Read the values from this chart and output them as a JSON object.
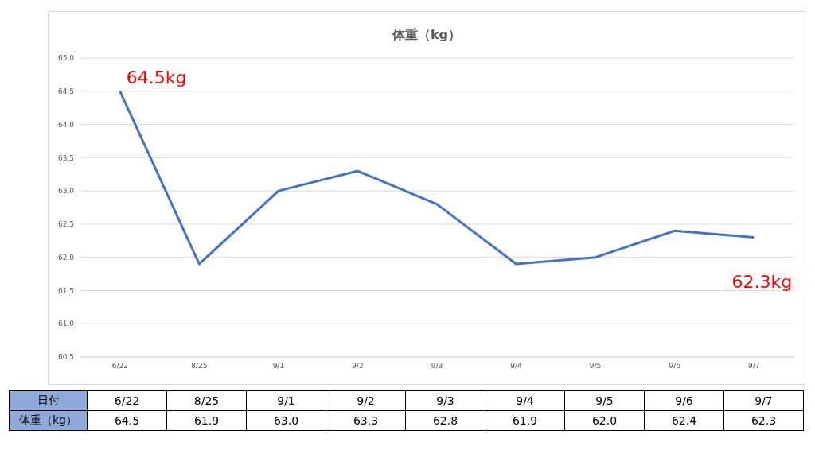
{
  "chart_data": {
    "type": "line",
    "title": "体重（kg）",
    "xlabel": "日付",
    "ylabel": "体重（kg）",
    "categories": [
      "6/22",
      "8/25",
      "9/1",
      "9/2",
      "9/3",
      "9/4",
      "9/5",
      "9/6",
      "9/7"
    ],
    "series": [
      {
        "color": "#4472c4",
        "values": [
          64.5,
          61.9,
          63.0,
          63.3,
          62.8,
          61.9,
          62.0,
          62.4,
          62.3
        ],
        "value_labels": [
          "64.5",
          "61.9",
          "63.0",
          "63.3",
          "62.8",
          "61.9",
          "62.0",
          "62.4",
          "62.3"
        ]
      }
    ],
    "ylim": [
      60.5,
      65.0
    ],
    "yticks": [
      {
        "value": 60.5,
        "label": "60.5"
      },
      {
        "value": 61,
        "label": "61.0"
      },
      {
        "value": 61.5,
        "label": "61.5"
      },
      {
        "value": 62,
        "label": "62.0"
      },
      {
        "value": 62.5,
        "label": "62.5"
      },
      {
        "value": 63,
        "label": "63.0"
      },
      {
        "value": 63.5,
        "label": "63.5"
      },
      {
        "value": 64,
        "label": "64.0"
      },
      {
        "value": 64.5,
        "label": "64.5"
      },
      {
        "value": 65,
        "label": "65.0"
      }
    ],
    "grid": "y",
    "marker": "none",
    "line_style": "solid",
    "annotations": [
      {
        "text": "64.5kg",
        "x": "6/22",
        "y": 64.5
      },
      {
        "text": "62.3kg",
        "x": "9/7",
        "y": 62.3
      }
    ]
  }
}
